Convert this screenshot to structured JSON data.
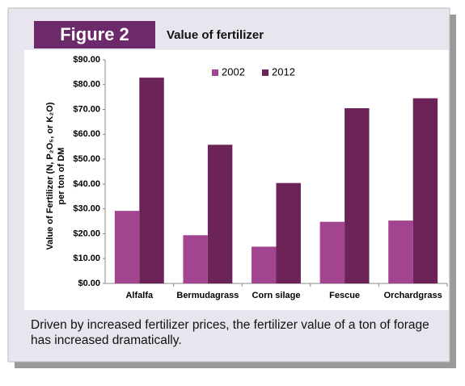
{
  "figure_label": "Figure 2",
  "caption": "Driven by increased fertilizer prices, the fertilizer value of a ton of forage has increased dramatically.",
  "chart_data": {
    "type": "bar",
    "title": "Value of fertilizer",
    "ylabel": [
      "Value of Fertilizer (N, P₂O₅, or K₂O)",
      "per ton of DM"
    ],
    "categories": [
      "Alfalfa",
      "Bermudagrass",
      "Corn silage",
      "Fescue",
      "Orchardgrass"
    ],
    "series": [
      {
        "name": "2002",
        "color": "#a2448f",
        "values": [
          29.2,
          19.4,
          14.8,
          24.8,
          25.3
        ]
      },
      {
        "name": "2012",
        "color": "#6c2358",
        "values": [
          82.8,
          55.8,
          40.4,
          70.5,
          74.5
        ]
      }
    ],
    "ylim": [
      0,
      90
    ],
    "yticks": [
      {
        "value": 0,
        "label": "$0.00"
      },
      {
        "value": 10,
        "label": "$10.00"
      },
      {
        "value": 20,
        "label": "$20.00"
      },
      {
        "value": 30,
        "label": "$30.00"
      },
      {
        "value": 40,
        "label": "$40.00"
      },
      {
        "value": 50,
        "label": "$50.00"
      },
      {
        "value": 60,
        "label": "$60.00"
      },
      {
        "value": 70,
        "label": "$70.00"
      },
      {
        "value": 80,
        "label": "$80.00"
      },
      {
        "value": 90,
        "label": "$90.00"
      }
    ],
    "legend": "top"
  }
}
